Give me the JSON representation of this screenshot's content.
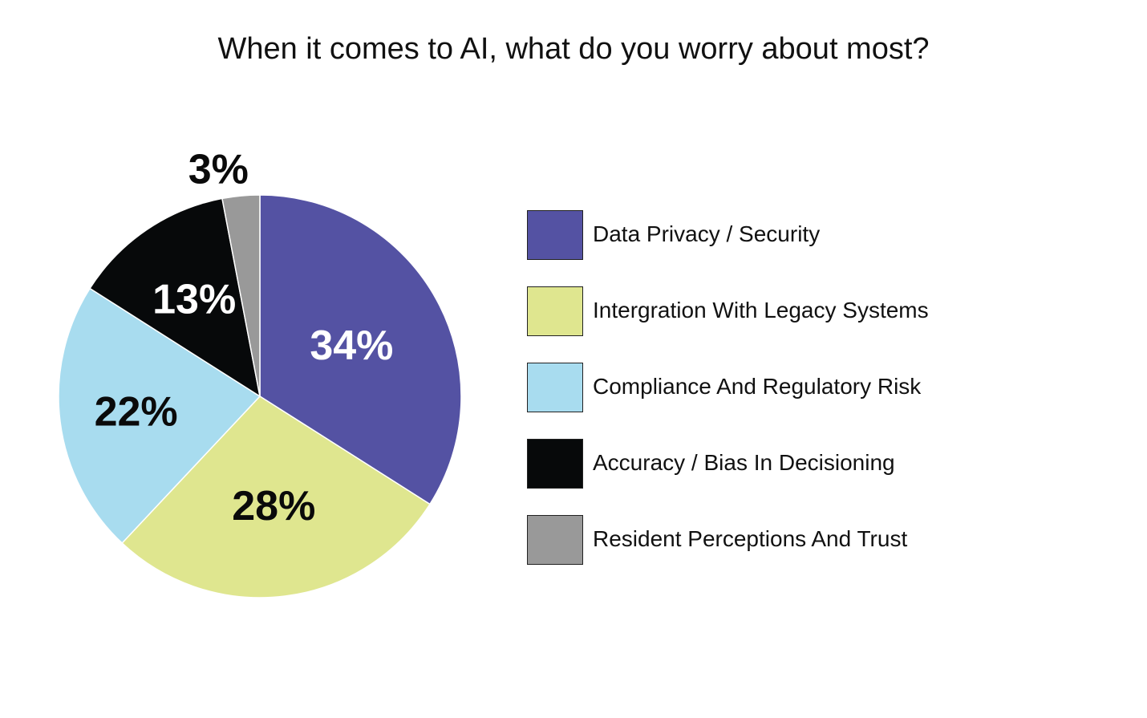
{
  "chart_data": {
    "type": "pie",
    "title": "When it comes to AI, what do you worry about most?",
    "categories": [
      "Data Privacy / Security",
      "Intergration With Legacy Systems",
      "Compliance And Regulatory Risk",
      "Accuracy / Bias In Decisioning",
      "Resident Perceptions And Trust"
    ],
    "values": [
      34,
      28,
      22,
      13,
      3
    ],
    "data_labels": [
      "34%",
      "28%",
      "22%",
      "13%",
      "3%"
    ],
    "colors": [
      "#5452a3",
      "#dfe68f",
      "#a8dcef",
      "#07090a",
      "#999999"
    ],
    "label_colors": [
      "#ffffff",
      "#0a0a0a",
      "#0a0a0a",
      "#ffffff",
      "#0a0a0a"
    ],
    "start": "12 o'clock",
    "direction": "clockwise",
    "legend_position": "right"
  }
}
